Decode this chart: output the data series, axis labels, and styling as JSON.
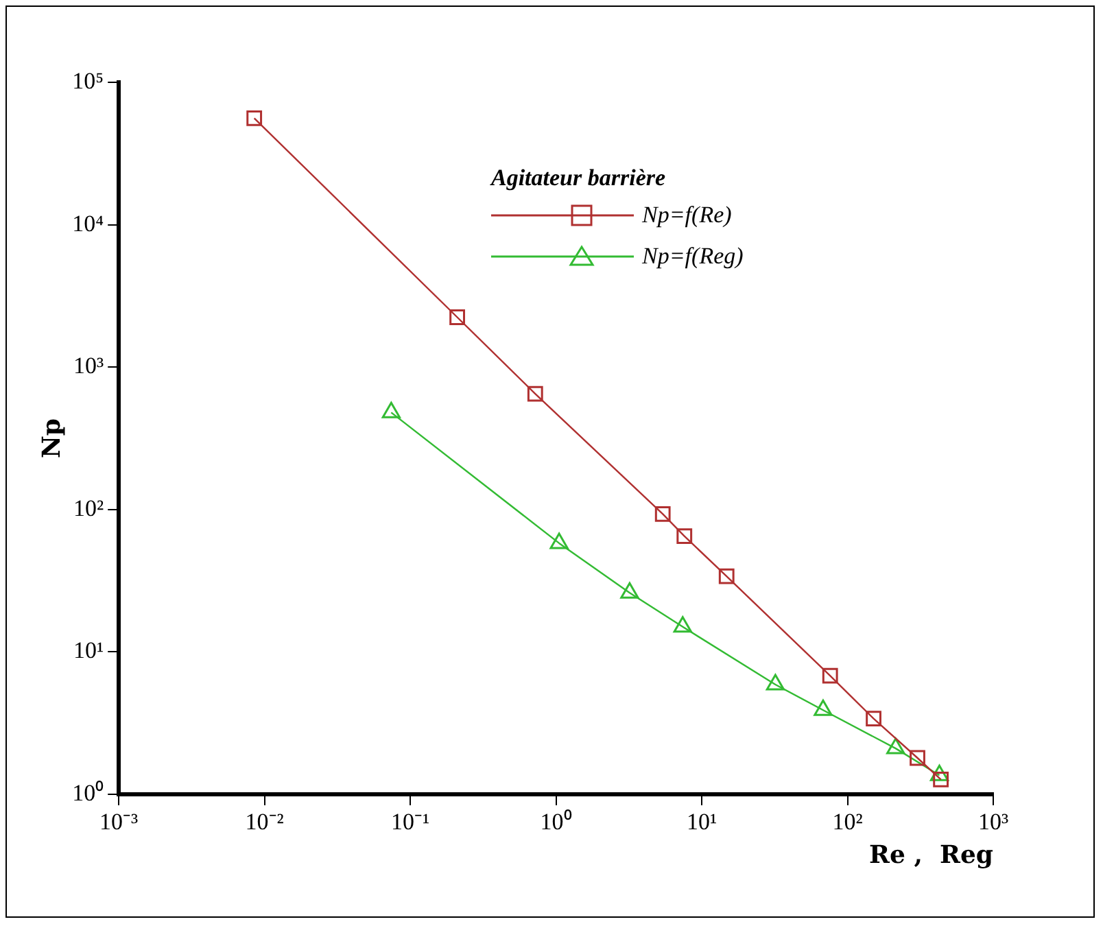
{
  "chart_data": {
    "type": "line",
    "xlabel": "Re ,  Reg",
    "ylabel": "Np",
    "legend_title": "Agitateur barrière",
    "log": "xy",
    "grid": false,
    "legend": "top right",
    "xlim": [
      0.001,
      1000
    ],
    "ylim": [
      1,
      100000
    ],
    "xticks": [
      {
        "value": 0.001,
        "label": "10⁻³"
      },
      {
        "value": 0.01,
        "label": "10⁻²"
      },
      {
        "value": 0.1,
        "label": "10⁻¹"
      },
      {
        "value": 1,
        "label": "10⁰"
      },
      {
        "value": 10,
        "label": "10¹"
      },
      {
        "value": 100,
        "label": "10²"
      },
      {
        "value": 1000,
        "label": "10³"
      }
    ],
    "yticks": [
      {
        "value": 1,
        "label": "10⁰"
      },
      {
        "value": 10,
        "label": "10¹"
      },
      {
        "value": 100,
        "label": "10²"
      },
      {
        "value": 1000,
        "label": "10³"
      },
      {
        "value": 10000,
        "label": "10⁴"
      },
      {
        "value": 100000,
        "label": "10⁵"
      }
    ],
    "series": [
      {
        "name": "Np=f(Re)",
        "color": "#b03030",
        "marker": "square",
        "x": [
          0.0085,
          0.21,
          0.72,
          5.4,
          7.6,
          14.8,
          76,
          151,
          302,
          437
        ],
        "values": [
          56000,
          2240,
          650,
          93,
          65,
          34,
          6.8,
          3.4,
          1.8,
          1.27
        ]
      },
      {
        "name": "Np=f(Reg)",
        "color": "#33bb33",
        "marker": "triangle",
        "x": [
          0.074,
          1.05,
          3.2,
          7.4,
          32,
          68,
          214,
          427
        ],
        "values": [
          480,
          58,
          26,
          15,
          5.9,
          3.9,
          2.1,
          1.36
        ]
      }
    ]
  }
}
